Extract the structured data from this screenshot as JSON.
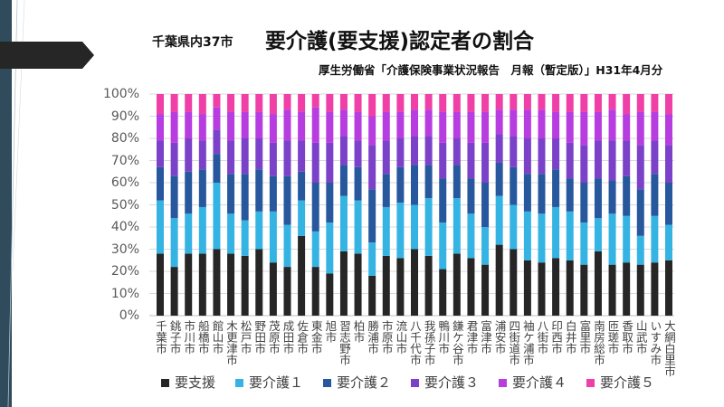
{
  "slide": {
    "scope_label": "千葉県内37市",
    "source": "厚生労働省「介護保険事業状況報告　月報（暫定版）」H31年4月分"
  },
  "chart_data": {
    "type": "bar",
    "stacked": true,
    "normalized_percent": true,
    "title": "要介護(要支援)認定者の割合",
    "xlabel": "",
    "ylabel": "",
    "ylim": [
      0,
      100
    ],
    "y_tick_values": [
      0,
      10,
      20,
      30,
      40,
      50,
      60,
      70,
      80,
      90,
      100
    ],
    "y_ticks": [
      "0%",
      "10%",
      "20%",
      "30%",
      "40%",
      "50%",
      "60%",
      "70%",
      "80%",
      "90%",
      "100%"
    ],
    "grid": true,
    "legend_position": "bottom",
    "categories": [
      "千葉市",
      "銚子市",
      "市川市",
      "船橋市",
      "館山市",
      "木更津市",
      "松戸市",
      "野田市",
      "茂原市",
      "成田市",
      "佐倉市",
      "東金市",
      "旭市",
      "習志野市",
      "柏市",
      "勝浦市",
      "市原市",
      "流山市",
      "八千代市",
      "我孫子市",
      "鴨川市",
      "鎌ケ谷市",
      "君津市",
      "富津市",
      "浦安市",
      "四街道市",
      "袖ケ浦市",
      "八街市",
      "印西市",
      "白井市",
      "富里市",
      "南房総市",
      "匝瑳市",
      "香取市",
      "山武市",
      "いすみ市",
      "大網白里市"
    ],
    "series": [
      {
        "name": "要支援",
        "color": "#262626",
        "values": [
          28,
          22,
          28,
          28,
          30,
          28,
          27,
          30,
          24,
          22,
          36,
          22,
          19,
          29,
          28,
          18,
          27,
          26,
          30,
          27,
          21,
          28,
          26,
          23,
          32,
          30,
          25,
          24,
          26,
          25,
          23,
          29,
          23,
          24,
          23,
          24,
          25
        ]
      },
      {
        "name": "要介護１",
        "color": "#35b4e4",
        "values": [
          24,
          22,
          18,
          21,
          30,
          18,
          16,
          17,
          23,
          19,
          16,
          16,
          23,
          25,
          24,
          15,
          22,
          25,
          20,
          26,
          21,
          25,
          20,
          17,
          22,
          20,
          22,
          22,
          23,
          22,
          19,
          15,
          23,
          21,
          13,
          21,
          16
        ]
      },
      {
        "name": "要介護２",
        "color": "#27579c",
        "values": [
          15,
          19,
          19,
          17,
          13,
          18,
          21,
          19,
          16,
          22,
          13,
          22,
          18,
          14,
          15,
          24,
          15,
          16,
          18,
          15,
          20,
          15,
          16,
          20,
          15,
          17,
          17,
          18,
          17,
          15,
          18,
          18,
          15,
          18,
          21,
          19,
          19
        ]
      },
      {
        "name": "要介護３",
        "color": "#7c41c9",
        "values": [
          12,
          15,
          15,
          13,
          11,
          15,
          16,
          14,
          15,
          16,
          14,
          18,
          18,
          13,
          12,
          20,
          15,
          13,
          13,
          13,
          16,
          12,
          16,
          18,
          13,
          14,
          16,
          16,
          14,
          16,
          17,
          17,
          18,
          16,
          20,
          15,
          17
        ]
      },
      {
        "name": "要介護４",
        "color": "#b73de0",
        "values": [
          12,
          14,
          12,
          12,
          10,
          13,
          12,
          12,
          13,
          14,
          13,
          16,
          14,
          12,
          13,
          13,
          13,
          12,
          12,
          12,
          14,
          12,
          14,
          14,
          11,
          12,
          13,
          13,
          12,
          14,
          15,
          13,
          14,
          12,
          15,
          13,
          14
        ]
      },
      {
        "name": "要介護５",
        "color": "#f03fa6",
        "values": [
          9,
          8,
          8,
          9,
          6,
          8,
          8,
          8,
          9,
          7,
          8,
          6,
          8,
          7,
          8,
          10,
          8,
          8,
          7,
          7,
          8,
          8,
          8,
          8,
          7,
          7,
          7,
          7,
          8,
          8,
          8,
          8,
          7,
          9,
          8,
          8,
          9
        ]
      }
    ]
  }
}
